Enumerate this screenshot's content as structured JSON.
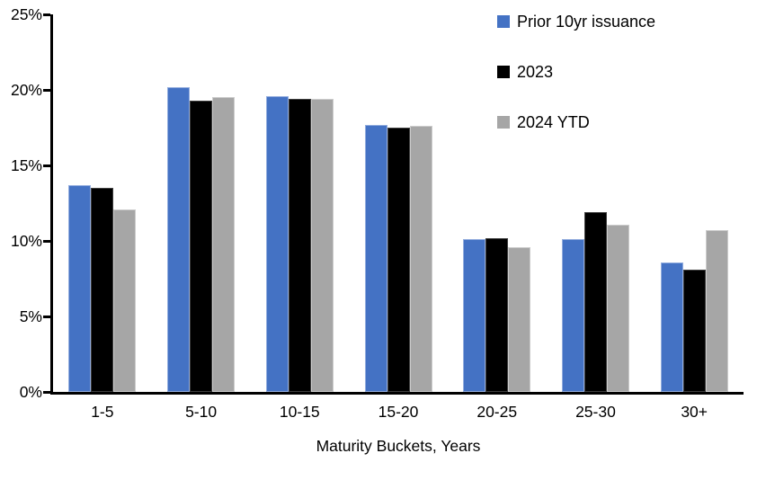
{
  "chart_data": {
    "type": "bar",
    "title": "",
    "xlabel": "Maturity Buckets, Years",
    "ylabel": "",
    "ylim": [
      0,
      25
    ],
    "ytick_step": 5,
    "ytick_labels": [
      "0%",
      "5%",
      "10%",
      "15%",
      "20%",
      "25%"
    ],
    "grid": false,
    "legend_position": "top-right",
    "categories": [
      "1-5",
      "5-10",
      "10-15",
      "15-20",
      "20-25",
      "25-30",
      "30+"
    ],
    "series": [
      {
        "name": "Prior 10yr issuance",
        "color": "#4472C4",
        "border_color": "#93ADDE",
        "values": [
          13.7,
          20.2,
          19.6,
          17.7,
          10.1,
          10.1,
          8.6
        ]
      },
      {
        "name": "2023",
        "color": "#000000",
        "border_color": "#3F3F3F",
        "values": [
          13.5,
          19.3,
          19.4,
          17.5,
          10.2,
          11.9,
          8.1
        ]
      },
      {
        "name": "2024 YTD",
        "color": "#A6A6A6",
        "border_color": "#CCCCCC",
        "values": [
          12.1,
          19.5,
          19.4,
          17.6,
          9.6,
          11.1,
          10.7
        ]
      }
    ]
  }
}
